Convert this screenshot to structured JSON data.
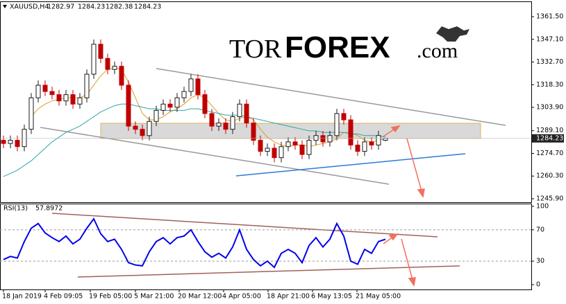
{
  "chart_data": [
    {
      "type": "candlestick",
      "title": "XAUUSD,H4",
      "x": [
        0,
        1,
        2,
        3,
        4,
        5,
        6,
        7,
        8,
        9,
        10,
        11,
        12,
        13,
        14,
        15,
        16,
        17,
        18,
        19,
        20,
        21,
        22,
        23,
        24,
        25,
        26,
        27,
        28,
        29,
        30,
        31,
        32,
        33,
        34,
        35,
        36,
        37,
        38,
        39,
        40,
        41,
        42,
        43,
        44,
        45,
        46,
        47,
        48,
        49,
        50,
        51,
        52,
        53,
        54,
        55
      ],
      "open": [
        1283,
        1281,
        1283,
        1279,
        1290,
        1310,
        1318,
        1314,
        1312,
        1308,
        1312,
        1306,
        1310,
        1325,
        1344,
        1335,
        1328,
        1330,
        1318,
        1292,
        1290,
        1286,
        1295,
        1302,
        1306,
        1304,
        1310,
        1314,
        1322,
        1312,
        1300,
        1292,
        1294,
        1290,
        1298,
        1306,
        1294,
        1283,
        1276,
        1278,
        1272,
        1279,
        1282,
        1280,
        1274,
        1283,
        1286,
        1282,
        1286,
        1300,
        1296,
        1280,
        1276,
        1282,
        1280,
        1282.97
      ],
      "high": [
        1286,
        1286,
        1286,
        1293,
        1313,
        1321,
        1321,
        1317,
        1315,
        1315,
        1315,
        1313,
        1328,
        1347,
        1347,
        1338,
        1333,
        1333,
        1321,
        1295,
        1293,
        1298,
        1305,
        1309,
        1309,
        1313,
        1317,
        1325,
        1325,
        1315,
        1303,
        1297,
        1297,
        1301,
        1309,
        1309,
        1297,
        1286,
        1281,
        1281,
        1282,
        1285,
        1285,
        1283,
        1286,
        1289,
        1289,
        1289,
        1303,
        1303,
        1299,
        1283,
        1285,
        1285,
        1289,
        1284.23
      ],
      "low": [
        1278,
        1278,
        1276,
        1276,
        1287,
        1307,
        1311,
        1309,
        1305,
        1305,
        1303,
        1303,
        1307,
        1322,
        1332,
        1325,
        1325,
        1315,
        1289,
        1287,
        1283,
        1283,
        1292,
        1299,
        1301,
        1301,
        1307,
        1311,
        1309,
        1297,
        1289,
        1289,
        1287,
        1287,
        1295,
        1291,
        1280,
        1273,
        1273,
        1269,
        1269,
        1276,
        1277,
        1271,
        1271,
        1280,
        1279,
        1279,
        1283,
        1293,
        1277,
        1273,
        1273,
        1277,
        1277,
        1282.38
      ],
      "close": [
        1281,
        1283,
        1279,
        1290,
        1310,
        1318,
        1314,
        1312,
        1308,
        1312,
        1306,
        1310,
        1325,
        1344,
        1335,
        1328,
        1330,
        1318,
        1292,
        1290,
        1286,
        1295,
        1302,
        1306,
        1304,
        1310,
        1314,
        1322,
        1312,
        1300,
        1292,
        1294,
        1290,
        1298,
        1306,
        1294,
        1283,
        1276,
        1278,
        1272,
        1279,
        1282,
        1280,
        1274,
        1283,
        1286,
        1282,
        1286,
        1300,
        1296,
        1280,
        1276,
        1282,
        1280,
        1286,
        1284.23
      ],
      "up_color": "#1a1a1a",
      "down_color": "#c00000",
      "overlays": [
        {
          "color": "#e09a2a",
          "values": [
            null,
            null,
            null,
            null,
            1298,
            1303,
            1306,
            1308,
            1309,
            1310,
            1310,
            1310,
            1312,
            1318,
            1324,
            1328,
            1329,
            1328,
            1320,
            1310,
            1300,
            1296,
            1296,
            1298,
            1301,
            1303,
            1306,
            1310,
            1312,
            1310,
            1305,
            1300,
            1296,
            1295,
            1297,
            1298,
            1296,
            1290,
            1285,
            1282,
            1280,
            1279,
            1280,
            1280,
            1279,
            1280,
            1281,
            1282,
            1284,
            1288,
            1288,
            1286,
            1283,
            1282,
            1283,
            1284
          ]
        },
        {
          "color": "#2aa6a6",
          "values": [
            1260,
            1262,
            1264,
            1267,
            1270,
            1274,
            1278,
            1282,
            1285,
            1288,
            1290,
            1292,
            1295,
            1298,
            1301,
            1303,
            1305,
            1306,
            1306,
            1305,
            1304,
            1303,
            1303,
            1302,
            1302,
            1302,
            1302,
            1303,
            1303,
            1302,
            1301,
            1300,
            1299,
            1299,
            1299,
            1298,
            1297,
            1296,
            1295,
            1294,
            1293,
            1292,
            1291,
            1290,
            1289,
            1289,
            1288,
            1288,
            1288,
            1288,
            1287,
            1287,
            1286,
            1286,
            1286,
            1285
          ]
        }
      ],
      "xlim": [
        -0.5,
        76
      ],
      "xticks": [
        {
          "value": 0,
          "label": "18 Jan 2019"
        },
        {
          "value": 6,
          "label": "4 Feb 09:05"
        },
        {
          "value": 12.5,
          "label": "19 Feb 05:00"
        },
        {
          "value": 19,
          "label": "5 Mar 21:00"
        },
        {
          "value": 25.3,
          "label": "20 Mar 12:00"
        },
        {
          "value": 31.7,
          "label": "4 Apr 05:00"
        },
        {
          "value": 38.1,
          "label": "18 Apr 21:00"
        },
        {
          "value": 44.5,
          "label": "6 May 13:05"
        },
        {
          "value": 50.9,
          "label": "21 May 05:00"
        }
      ],
      "ylim": [
        1243.7,
        1371.2
      ],
      "yticks": [
        {
          "value": 1361.5,
          "label": "1361.50"
        },
        {
          "value": 1347.1,
          "label": "1347.10"
        },
        {
          "value": 1332.7,
          "label": "1332.70"
        },
        {
          "value": 1318.3,
          "label": "1318.30"
        },
        {
          "value": 1303.9,
          "label": "1303.90"
        },
        {
          "value": 1289.1,
          "label": "1289.10"
        },
        {
          "value": 1274.7,
          "label": "1274.70"
        },
        {
          "value": 1260.3,
          "label": "1260.30"
        },
        {
          "value": 1245.9,
          "label": "1245.90"
        }
      ]
    },
    {
      "type": "line",
      "title": "RSI(13)",
      "color": "#0000ee",
      "values": [
        32,
        36,
        34,
        55,
        72,
        78,
        66,
        60,
        55,
        62,
        52,
        58,
        72,
        84,
        65,
        55,
        58,
        45,
        28,
        25,
        24,
        42,
        55,
        60,
        52,
        60,
        62,
        70,
        55,
        42,
        35,
        40,
        34,
        48,
        70,
        45,
        32,
        24,
        30,
        22,
        40,
        45,
        40,
        28,
        50,
        60,
        48,
        58,
        78,
        62,
        30,
        26,
        45,
        40,
        55,
        57.8972
      ],
      "ylim": [
        -6.2,
        103.5
      ],
      "yticks": [
        100,
        70,
        30,
        0
      ],
      "grid": true
    }
  ],
  "logo": {
    "prefix": "TOR",
    "brand": "FOREX",
    "suffix": ".com"
  }
}
